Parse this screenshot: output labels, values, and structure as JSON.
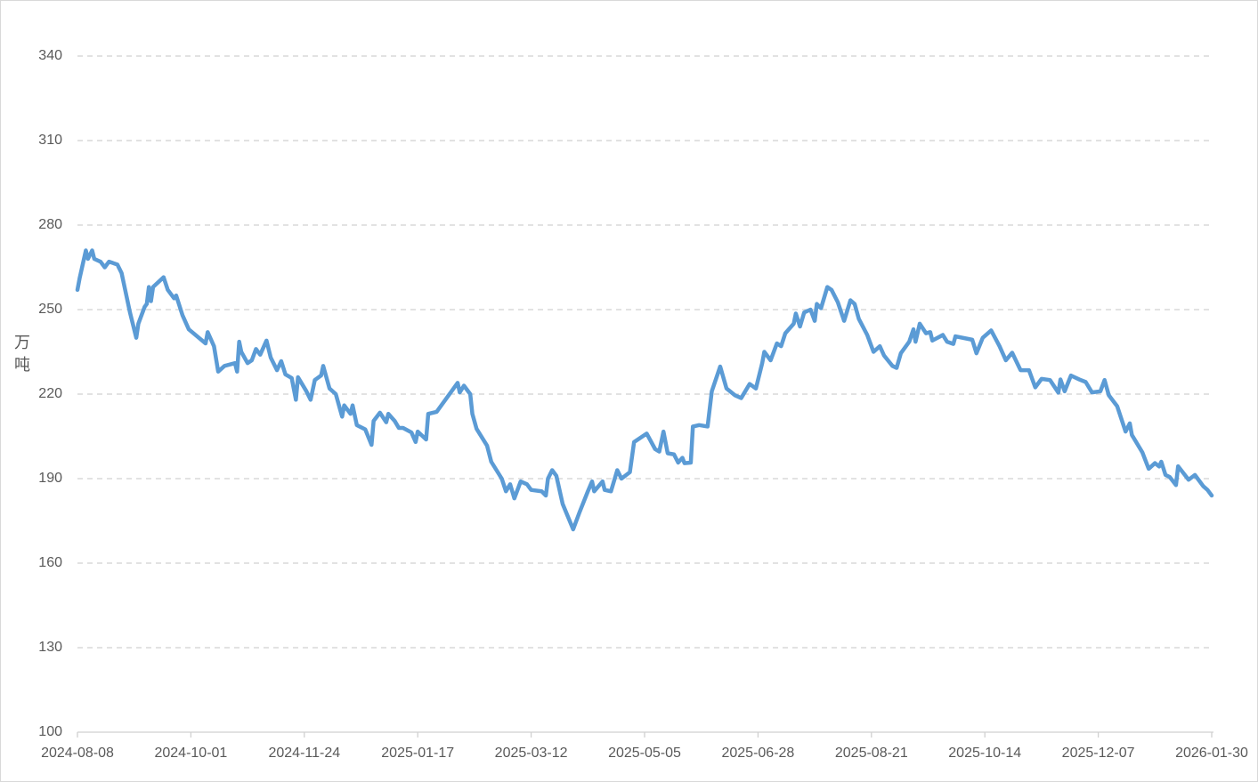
{
  "chart_data": {
    "type": "line",
    "y_label": [
      "万",
      "吨"
    ],
    "color": "#5b9bd5",
    "xlim": [
      "2024-08-08",
      "2026-01-30"
    ],
    "xticks": [
      "2024-08-08",
      "2024-10-01",
      "2024-11-24",
      "2025-01-17",
      "2025-03-12",
      "2025-05-05",
      "2025-06-28",
      "2025-08-21",
      "2025-10-14",
      "2025-12-07",
      "2026-01-30"
    ],
    "ylim": [
      100,
      340
    ],
    "yticks": [
      100,
      130,
      160,
      190,
      220,
      250,
      280,
      310,
      340
    ],
    "grid": true,
    "x": [
      "2024-08-08",
      "2024-08-09",
      "2024-08-12",
      "2024-08-13",
      "2024-08-15",
      "2024-08-16",
      "2024-08-19",
      "2024-08-21",
      "2024-08-23",
      "2024-08-27",
      "2024-08-29",
      "2024-09-02",
      "2024-09-05",
      "2024-09-06",
      "2024-09-09",
      "2024-09-10",
      "2024-09-11",
      "2024-09-12",
      "2024-09-13",
      "2024-09-18",
      "2024-09-20",
      "2024-09-23",
      "2024-09-24",
      "2024-09-27",
      "2024-09-30",
      "2024-10-08",
      "2024-10-09",
      "2024-10-12",
      "2024-10-14",
      "2024-10-17",
      "2024-10-22",
      "2024-10-23",
      "2024-10-24",
      "2024-10-25",
      "2024-10-28",
      "2024-10-30",
      "2024-11-01",
      "2024-11-03",
      "2024-11-06",
      "2024-11-08",
      "2024-11-11",
      "2024-11-13",
      "2024-11-15",
      "2024-11-18",
      "2024-11-20",
      "2024-11-21",
      "2024-11-25",
      "2024-11-27",
      "2024-11-29",
      "2024-12-02",
      "2024-12-03",
      "2024-12-06",
      "2024-12-09",
      "2024-12-12",
      "2024-12-13",
      "2024-12-16",
      "2024-12-17",
      "2024-12-19",
      "2024-12-23",
      "2024-12-26",
      "2024-12-27",
      "2024-12-30",
      "2025-01-02",
      "2025-01-03",
      "2025-01-06",
      "2025-01-08",
      "2025-01-10",
      "2025-01-14",
      "2025-01-16",
      "2025-01-17",
      "2025-01-21",
      "2025-01-22",
      "2025-01-26",
      "2025-02-05",
      "2025-02-06",
      "2025-02-08",
      "2025-02-11",
      "2025-02-12",
      "2025-02-14",
      "2025-02-19",
      "2025-02-21",
      "2025-02-26",
      "2025-02-28",
      "2025-03-02",
      "2025-03-04",
      "2025-03-07",
      "2025-03-10",
      "2025-03-12",
      "2025-03-17",
      "2025-03-19",
      "2025-03-20",
      "2025-03-22",
      "2025-03-24",
      "2025-03-27",
      "2025-04-01",
      "2025-04-04",
      "2025-04-08",
      "2025-04-10",
      "2025-04-11",
      "2025-04-15",
      "2025-04-16",
      "2025-04-19",
      "2025-04-22",
      "2025-04-24",
      "2025-04-28",
      "2025-04-30",
      "2025-05-06",
      "2025-05-10",
      "2025-05-12",
      "2025-05-14",
      "2025-05-16",
      "2025-05-19",
      "2025-05-21",
      "2025-05-23",
      "2025-05-24",
      "2025-05-27",
      "2025-05-28",
      "2025-05-31",
      "2025-06-04",
      "2025-06-06",
      "2025-06-10",
      "2025-06-13",
      "2025-06-17",
      "2025-06-20",
      "2025-06-24",
      "2025-06-27",
      "2025-06-30",
      "2025-07-01",
      "2025-07-04",
      "2025-07-07",
      "2025-07-09",
      "2025-07-11",
      "2025-07-15",
      "2025-07-16",
      "2025-07-18",
      "2025-07-20",
      "2025-07-23",
      "2025-07-25",
      "2025-07-26",
      "2025-07-28",
      "2025-07-31",
      "2025-08-02",
      "2025-08-05",
      "2025-08-08",
      "2025-08-11",
      "2025-08-13",
      "2025-08-15",
      "2025-08-19",
      "2025-08-22",
      "2025-08-25",
      "2025-08-27",
      "2025-08-31",
      "2025-09-02",
      "2025-09-04",
      "2025-09-08",
      "2025-09-10",
      "2025-09-11",
      "2025-09-13",
      "2025-09-16",
      "2025-09-18",
      "2025-09-19",
      "2025-09-24",
      "2025-09-26",
      "2025-09-29",
      "2025-09-30",
      "2025-10-08",
      "2025-10-10",
      "2025-10-13",
      "2025-10-17",
      "2025-10-21",
      "2025-10-24",
      "2025-10-27",
      "2025-10-31",
      "2025-11-04",
      "2025-11-07",
      "2025-11-10",
      "2025-11-14",
      "2025-11-18",
      "2025-11-19",
      "2025-11-21",
      "2025-11-24",
      "2025-11-28",
      "2025-12-01",
      "2025-12-04",
      "2025-12-08",
      "2025-12-10",
      "2025-12-12",
      "2025-12-16",
      "2025-12-20",
      "2025-12-22",
      "2025-12-23",
      "2025-12-28",
      "2025-12-31",
      "2026-01-03",
      "2026-01-05",
      "2026-01-06",
      "2026-01-08",
      "2026-01-10",
      "2026-01-13",
      "2026-01-14",
      "2026-01-19",
      "2026-01-22",
      "2026-01-26",
      "2026-01-28",
      "2026-01-30"
    ],
    "values": [
      257,
      261,
      271,
      268,
      271,
      268,
      267,
      265,
      267,
      266,
      263,
      249,
      240,
      245,
      251,
      252,
      258,
      253,
      258,
      261.5,
      257,
      254,
      255,
      248,
      243,
      238,
      242,
      237,
      228,
      230,
      231,
      228,
      238.6,
      235,
      231,
      232,
      236,
      234,
      239,
      233,
      228.5,
      231.7,
      227,
      225.7,
      218,
      226,
      221,
      218,
      225,
      226.6,
      230,
      222,
      220,
      212,
      216,
      213,
      216,
      209,
      207.5,
      202,
      210.5,
      213.4,
      210,
      213,
      210.5,
      208,
      208,
      206.4,
      203,
      206.7,
      203.9,
      213,
      213.7,
      224,
      220.6,
      223,
      220,
      213,
      207.7,
      201.7,
      196,
      190,
      185.5,
      188,
      183,
      189,
      188,
      186,
      185.5,
      184,
      190,
      193,
      191,
      181,
      172,
      178,
      185.5,
      189,
      185.5,
      189,
      186,
      185.5,
      193,
      190,
      192.3,
      203,
      206,
      200.5,
      199.6,
      206.7,
      199,
      198.6,
      195.7,
      197.4,
      195.5,
      195.7,
      208.5,
      209,
      208.5,
      221,
      229.8,
      222,
      219.6,
      218.6,
      223.6,
      222,
      231,
      235,
      232,
      238,
      237,
      241.6,
      245,
      248.6,
      244,
      249,
      250,
      246,
      252,
      250.5,
      258,
      257,
      252.6,
      246,
      253.3,
      252,
      246.7,
      241,
      235,
      237,
      233.7,
      230,
      229.3,
      234.5,
      238.6,
      243,
      238.6,
      245,
      241.6,
      242,
      239,
      241,
      238.6,
      237.8,
      240.5,
      239.3,
      234.5,
      240,
      242.6,
      237,
      232,
      234.7,
      228.5,
      228.5,
      222.4,
      225.4,
      225,
      220.5,
      225.2,
      221,
      226.6,
      225.2,
      224.3,
      220.6,
      221,
      225,
      219.6,
      215.7,
      206.7,
      209.6,
      205.5,
      199.3,
      193.5,
      195.5,
      194.3,
      196,
      191.3,
      190.6,
      187.7,
      194.4,
      189.6,
      191.3,
      187.3,
      186,
      184
    ]
  }
}
